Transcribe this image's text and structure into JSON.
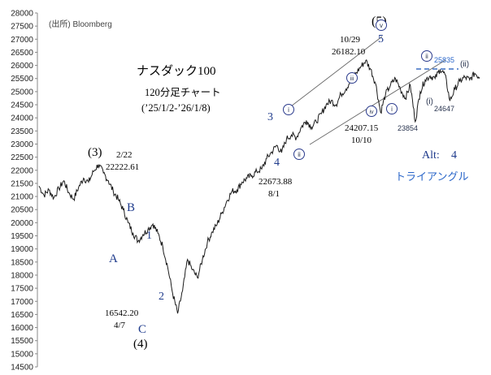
{
  "chart_data": {
    "type": "line",
    "source_note": "(出所) Bloomberg",
    "title": "ナスダック100",
    "subtitle": "120分足チャート",
    "period": "(’25/1/2-’26/1/8)",
    "ylim": [
      14500,
      28000
    ],
    "yticks": [
      14500,
      15000,
      15500,
      16000,
      16500,
      17000,
      17500,
      18000,
      18500,
      19000,
      19500,
      20000,
      20500,
      21000,
      21500,
      22000,
      22500,
      23000,
      23500,
      24000,
      24500,
      25000,
      25500,
      26000,
      26500,
      27000,
      27500,
      28000
    ],
    "series": [
      {
        "values": [
          21400,
          21050,
          21250,
          20950,
          21300,
          21600,
          21150,
          20900,
          21350,
          21700,
          21550,
          21950,
          22222,
          21900,
          21600,
          21200,
          20900,
          20500,
          20000,
          19600,
          19300,
          19550,
          19750,
          19950,
          19600,
          19100,
          18300,
          17300,
          16542,
          17400,
          18600,
          18200,
          17900,
          18600,
          19250,
          19650,
          19950,
          20400,
          20850,
          21200,
          21250,
          21550,
          21700,
          21800,
          21950,
          22050,
          22450,
          22700,
          22950,
          22673,
          23200,
          23350,
          23250,
          23650,
          23900,
          23650,
          23850,
          24150,
          24500,
          24650,
          24500,
          24900,
          25100,
          25450,
          25700,
          25950,
          26182,
          25850,
          25300,
          24207,
          24900,
          25250,
          25500,
          25100,
          24750,
          25250,
          23854,
          25000,
          25450,
          25600,
          25500,
          25850,
          25650,
          24647,
          25100,
          25400,
          25550,
          25450,
          25700,
          25550
        ]
      }
    ],
    "annotations": {
      "p3": {
        "label": "(3)",
        "date": "2/22",
        "value": "22222.61"
      },
      "p4": {
        "label": "(4)",
        "date": "4/7",
        "value": "16542.20"
      },
      "p5": {
        "label": "(5)",
        "date": "10/29",
        "value": "26182.10"
      },
      "pA": "A",
      "pB": "B",
      "pC": "C",
      "w1": "1",
      "w2": "2",
      "w3": "3",
      "w4": "4",
      "w4_low": {
        "value": "22673.88",
        "date": "8/1"
      },
      "w5": "5",
      "c_i": "i",
      "c_ii": "ii",
      "c_iii": "iii",
      "c_iv": "iv",
      "c_v": "v",
      "c_i_right": "i",
      "p_i_small": "(i)",
      "p_ii_small": "(ii)",
      "c_ii_top": "ii",
      "low_1010": {
        "value": "24207.15",
        "date": "10/10"
      },
      "low_23854": "23854",
      "low_24647": "24647",
      "level_25835": "25835",
      "alt_label": "Alt:",
      "alt_wave": "4",
      "triangle": "トライアングル"
    }
  }
}
